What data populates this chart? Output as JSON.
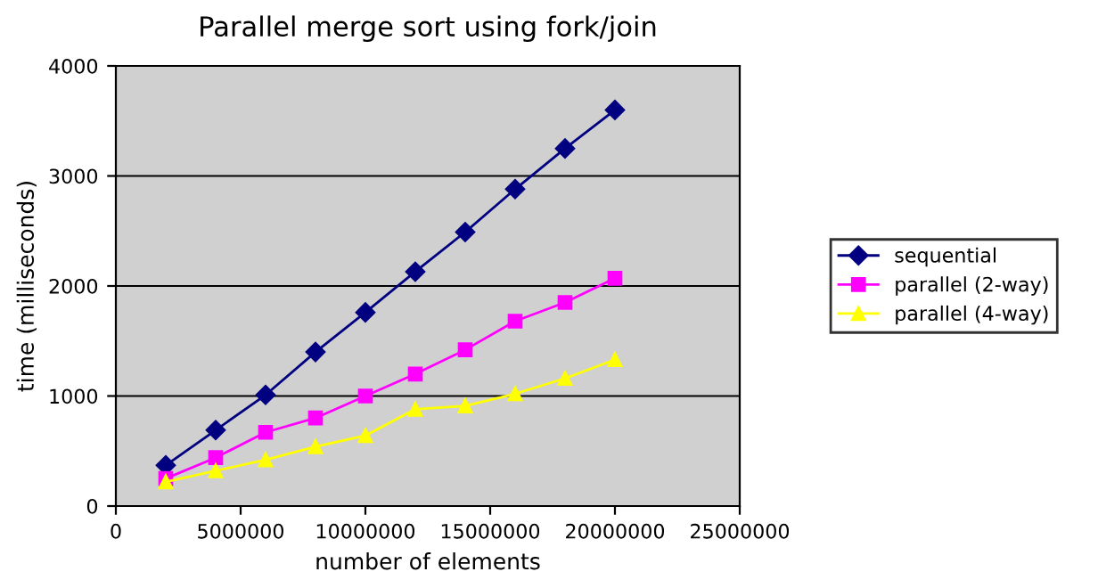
{
  "chart_data": {
    "type": "line",
    "title": "Parallel merge sort using fork/join",
    "xlabel": "number of elements",
    "ylabel": "time (milliseconds)",
    "x": [
      2000000,
      4000000,
      6000000,
      8000000,
      10000000,
      12000000,
      14000000,
      16000000,
      18000000,
      20000000
    ],
    "series": [
      {
        "name": "sequential",
        "color": "#000080",
        "marker": "diamond",
        "values": [
          370,
          690,
          1010,
          1400,
          1760,
          2130,
          2490,
          2880,
          3250,
          3600
        ]
      },
      {
        "name": "parallel (2-way)",
        "color": "#ff00ff",
        "marker": "square",
        "values": [
          250,
          440,
          670,
          800,
          1000,
          1200,
          1420,
          1680,
          1850,
          2070
        ]
      },
      {
        "name": "parallel (4-way)",
        "color": "#ffff00",
        "marker": "triangle",
        "values": [
          220,
          320,
          420,
          540,
          640,
          880,
          910,
          1020,
          1160,
          1330
        ]
      }
    ],
    "xlim": [
      0,
      25000000
    ],
    "xticks": [
      0,
      5000000,
      10000000,
      15000000,
      20000000,
      25000000
    ],
    "ylim": [
      0,
      4000
    ],
    "yticks": [
      0,
      1000,
      2000,
      3000,
      4000
    ],
    "grid": "y",
    "legend": "right"
  }
}
